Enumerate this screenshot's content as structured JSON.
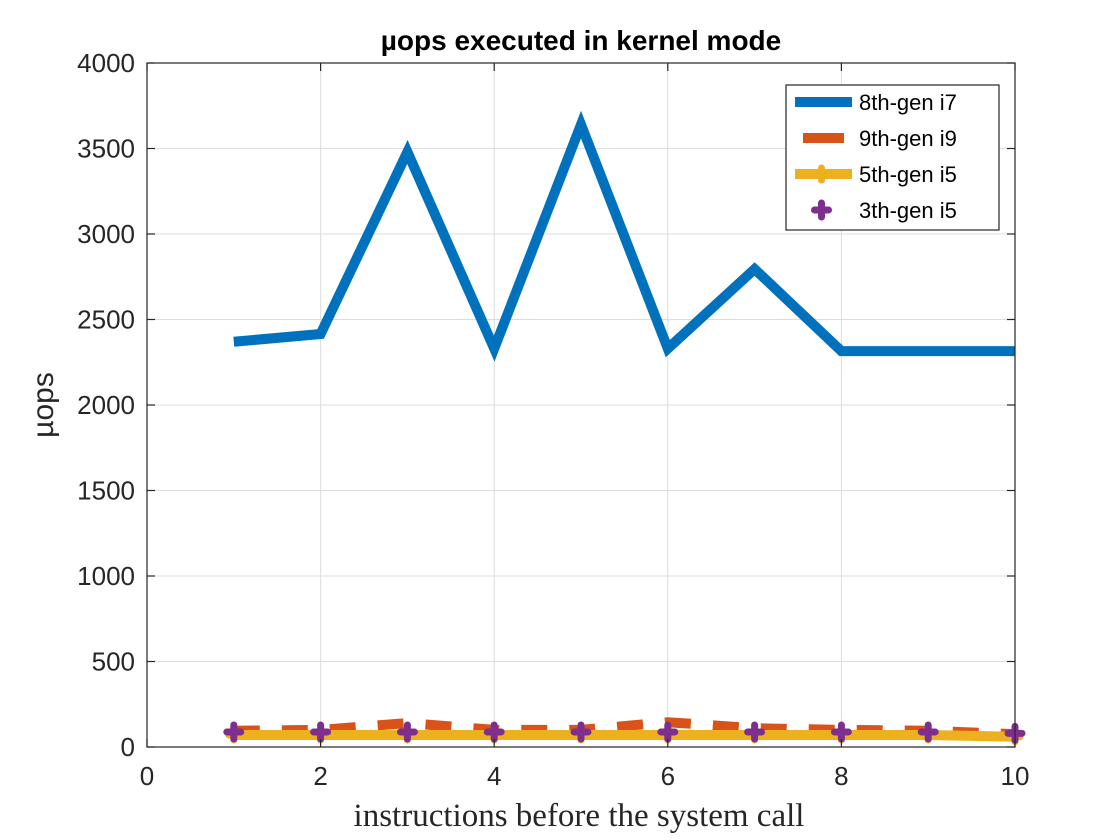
{
  "chart_data": {
    "type": "line",
    "title": "µops executed in kernel mode",
    "xlabel": "instructions before the system call",
    "ylabel": "µops",
    "xlim": [
      0,
      10
    ],
    "ylim": [
      0,
      4000
    ],
    "xticks": [
      0,
      2,
      4,
      6,
      8,
      10
    ],
    "yticks": [
      0,
      500,
      1000,
      1500,
      2000,
      2500,
      3000,
      3500,
      4000
    ],
    "grid": true,
    "legend_position": "top-right",
    "x": [
      1,
      2,
      3,
      4,
      5,
      6,
      7,
      8,
      9,
      10
    ],
    "series": [
      {
        "name": "8th-gen i7",
        "color": "#0072BD",
        "style": "solid",
        "marker": "none",
        "values": [
          2370,
          2415,
          3480,
          2330,
          3640,
          2330,
          2795,
          2315,
          2315,
          2315
        ]
      },
      {
        "name": "9th-gen i9",
        "color": "#D95319",
        "style": "dashed",
        "marker": "none",
        "values": [
          95,
          100,
          140,
          100,
          100,
          145,
          110,
          100,
          95,
          75
        ]
      },
      {
        "name": "5th-gen i5",
        "color": "#EDB120",
        "style": "solid",
        "marker": "plus",
        "values": [
          70,
          70,
          70,
          70,
          70,
          70,
          70,
          70,
          70,
          60
        ]
      },
      {
        "name": "3th-gen i5",
        "color": "#7E2F8E",
        "style": "none",
        "marker": "plus",
        "values": [
          88,
          88,
          88,
          88,
          88,
          88,
          88,
          88,
          88,
          80
        ]
      }
    ]
  }
}
